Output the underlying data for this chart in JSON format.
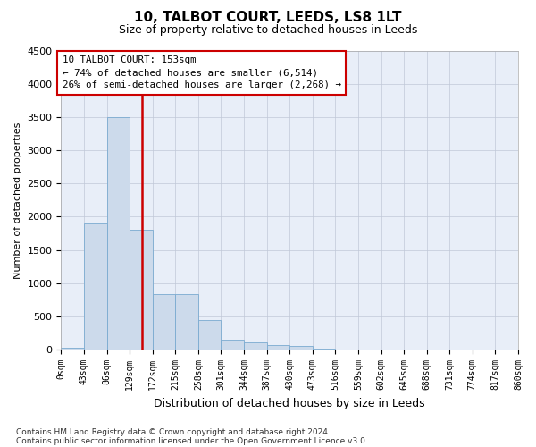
{
  "title": "10, TALBOT COURT, LEEDS, LS8 1LT",
  "subtitle": "Size of property relative to detached houses in Leeds",
  "xlabel": "Distribution of detached houses by size in Leeds",
  "ylabel": "Number of detached properties",
  "footer_line1": "Contains HM Land Registry data © Crown copyright and database right 2024.",
  "footer_line2": "Contains public sector information licensed under the Open Government Licence v3.0.",
  "annotation_title": "10 TALBOT COURT: 153sqm",
  "annotation_line1": "← 74% of detached houses are smaller (6,514)",
  "annotation_line2": "26% of semi-detached houses are larger (2,268) →",
  "bar_color": "#ccdaeb",
  "bar_edge_color": "#7aaad0",
  "vline_color": "#cc0000",
  "vline_x": 153,
  "bin_edges": [
    0,
    43,
    86,
    129,
    172,
    215,
    258,
    301,
    344,
    387,
    430,
    473,
    516,
    559,
    602,
    645,
    688,
    731,
    774,
    817,
    860
  ],
  "bar_values": [
    28,
    1900,
    3500,
    1800,
    840,
    840,
    450,
    155,
    105,
    75,
    60,
    20,
    8,
    4,
    2,
    1,
    1,
    0,
    0,
    0
  ],
  "ylim": [
    0,
    4500
  ],
  "yticks": [
    0,
    500,
    1000,
    1500,
    2000,
    2500,
    3000,
    3500,
    4000,
    4500
  ],
  "tick_labels": [
    "0sqm",
    "43sqm",
    "86sqm",
    "129sqm",
    "172sqm",
    "215sqm",
    "258sqm",
    "301sqm",
    "344sqm",
    "387sqm",
    "430sqm",
    "473sqm",
    "516sqm",
    "559sqm",
    "602sqm",
    "645sqm",
    "688sqm",
    "731sqm",
    "774sqm",
    "817sqm",
    "860sqm"
  ],
  "bg_color": "#ffffff",
  "ax_bg_color": "#e8eef8",
  "grid_color": "#c0c8d8"
}
